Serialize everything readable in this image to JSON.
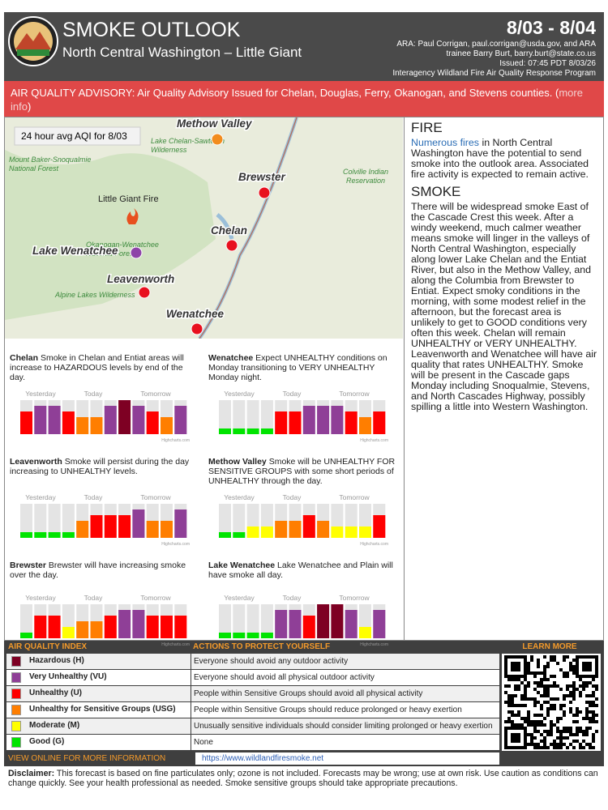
{
  "header": {
    "title": "SMOKE OUTLOOK",
    "subtitle": "North Central Washington – Little Giant",
    "dates": "8/03 - 8/04",
    "contact": [
      "ARA: Paul Corrigan, paul.corrigan@usda.gov, and ARA",
      "trainee Barry Burt, barry.burt@state.co.us",
      "Issued: 07:45 PDT 8/03/26",
      "Interagency Wildland Fire Air Quality Response Program"
    ]
  },
  "advisory": {
    "text": "AIR QUALITY ADVISORY: Air Quality Advisory Issued for Chelan, Douglas, Ferry, Okanogan, and Stevens counties. (",
    "link": "more info",
    "close": ")"
  },
  "map": {
    "caption": "24 hour avg AQI for 8/03",
    "fire": "Little Giant Fire",
    "places": [
      {
        "label": "Methow Valley",
        "color": "#f28c1e"
      },
      {
        "label": "Brewster",
        "color": "#e8101e"
      },
      {
        "label": "Chelan",
        "color": "#e8101e"
      },
      {
        "label": "Lake Wenatchee",
        "color": "#8e44a8"
      },
      {
        "label": "Leavenworth",
        "color": "#e8101e"
      },
      {
        "label": "Wenatchee",
        "color": "#e8101e"
      }
    ],
    "areas": [
      "Mount Baker-Snoqualmie National Forest",
      "Lake Chelan-Sawtooth Wilderness",
      "Colville Indian Reservation",
      "Okanogan-Wenatchee National Forest",
      "Alpine Lakes Wilderness"
    ]
  },
  "chart_labels": {
    "yesterday": "Yesterday",
    "today": "Today",
    "tomorrow": "Tomorrow",
    "credit": "Highcharts.com"
  },
  "forecasts": [
    {
      "name": "Chelan",
      "text": "Smoke in Chelan and Entiat areas will increase to HAZARDOUS levels by end of the day.",
      "levels": [
        4,
        5,
        5,
        4,
        3,
        3,
        5,
        6,
        5,
        4,
        3,
        5
      ]
    },
    {
      "name": "Wenatchee",
      "text": "Expect UNHEALTHY conditions on Monday transitioning to VERY UNHEALTHY Monday night.",
      "levels": [
        1,
        1,
        1,
        1,
        4,
        4,
        5,
        5,
        5,
        4,
        3,
        4
      ]
    },
    {
      "name": "Leavenworth",
      "text": "Smoke will persist during the day increasing to UNHEALTHY levels.",
      "levels": [
        1,
        1,
        1,
        1,
        3,
        4,
        4,
        4,
        5,
        3,
        3,
        5
      ]
    },
    {
      "name": "Methow Valley",
      "text": "Smoke will be UNHEALTHY FOR SENSITIVE GROUPS with some short periods of UNHEALTHY through the day.",
      "levels": [
        1,
        1,
        2,
        2,
        3,
        3,
        4,
        3,
        2,
        2,
        2,
        4
      ]
    },
    {
      "name": "Brewster",
      "text": "Brewster will have increasing smoke over the day.",
      "levels": [
        1,
        4,
        4,
        2,
        3,
        3,
        4,
        5,
        5,
        4,
        4,
        4
      ]
    },
    {
      "name": "Lake Wenatchee",
      "text": "Lake Wenatchee and Plain will have smoke all day.",
      "levels": [
        1,
        1,
        1,
        1,
        5,
        5,
        4,
        6,
        6,
        5,
        2,
        5
      ]
    }
  ],
  "fire": {
    "heading": "FIRE",
    "link": "Numerous fires",
    "text": " in North Central Washington have the potential to send smoke into the outlook area. Associated fire activity is expected to remain active."
  },
  "smoke": {
    "heading": "SMOKE",
    "text": "There will be widespread smoke East of the Cascade Crest this week. After a windy weekend, much calmer weather means smoke will linger in the valleys of North Central Washington, especially along lower Lake Chelan and the Entiat River, but also in the Methow Valley, and along the Columbia from Brewster to Entiat. Expect smoky conditions in the morning, with some modest relief in the afternoon, but the forecast area is unlikely to get to GOOD conditions very often this week. Chelan will remain UNHEALTHY or VERY UNHEALTHY. Leavenworth and Wenatchee will have air quality that rates UNHEALTHY. Smoke will be present in the Cascade gaps Monday including Snoqualmie, Stevens, and North Cascades Highway, possibly spilling a little into Western Washington."
  },
  "aqi": {
    "headers": [
      "AIR QUALITY INDEX",
      "ACTIONS TO PROTECT YOURSELF",
      "LEARN MORE"
    ],
    "rows": [
      {
        "name": "Hazardous (H)",
        "action": "Everyone should avoid any outdoor activity",
        "color": "#7e0023"
      },
      {
        "name": "Very Unhealthy (VU)",
        "action": "Everyone should avoid all physical outdoor activity",
        "color": "#8f3f97"
      },
      {
        "name": "Unhealthy (U)",
        "action": "People within Sensitive Groups should avoid all physical activity",
        "color": "#ff0000"
      },
      {
        "name": "Unhealthy for Sensitive Groups (USG)",
        "action": "People within Sensitive Groups should reduce prolonged or heavy exertion",
        "color": "#ff7e00"
      },
      {
        "name": "Moderate (M)",
        "action": "Unusually sensitive individuals should consider limiting prolonged or heavy exertion",
        "color": "#ffff00"
      },
      {
        "name": "Good (G)",
        "action": "None",
        "color": "#00e400"
      }
    ],
    "footer": "VIEW ONLINE FOR MORE INFORMATION",
    "url": "https://www.wildlandfiresmoke.net"
  },
  "disclaimer": {
    "label": "Disclaimer:",
    "text": " This forecast is based on fine particulates only; ozone is not included. Forecasts may be wrong; use at own risk. Use caution as conditions can change quickly. See your health professional as needed. Smoke sensitive groups should take appropriate precautions."
  }
}
